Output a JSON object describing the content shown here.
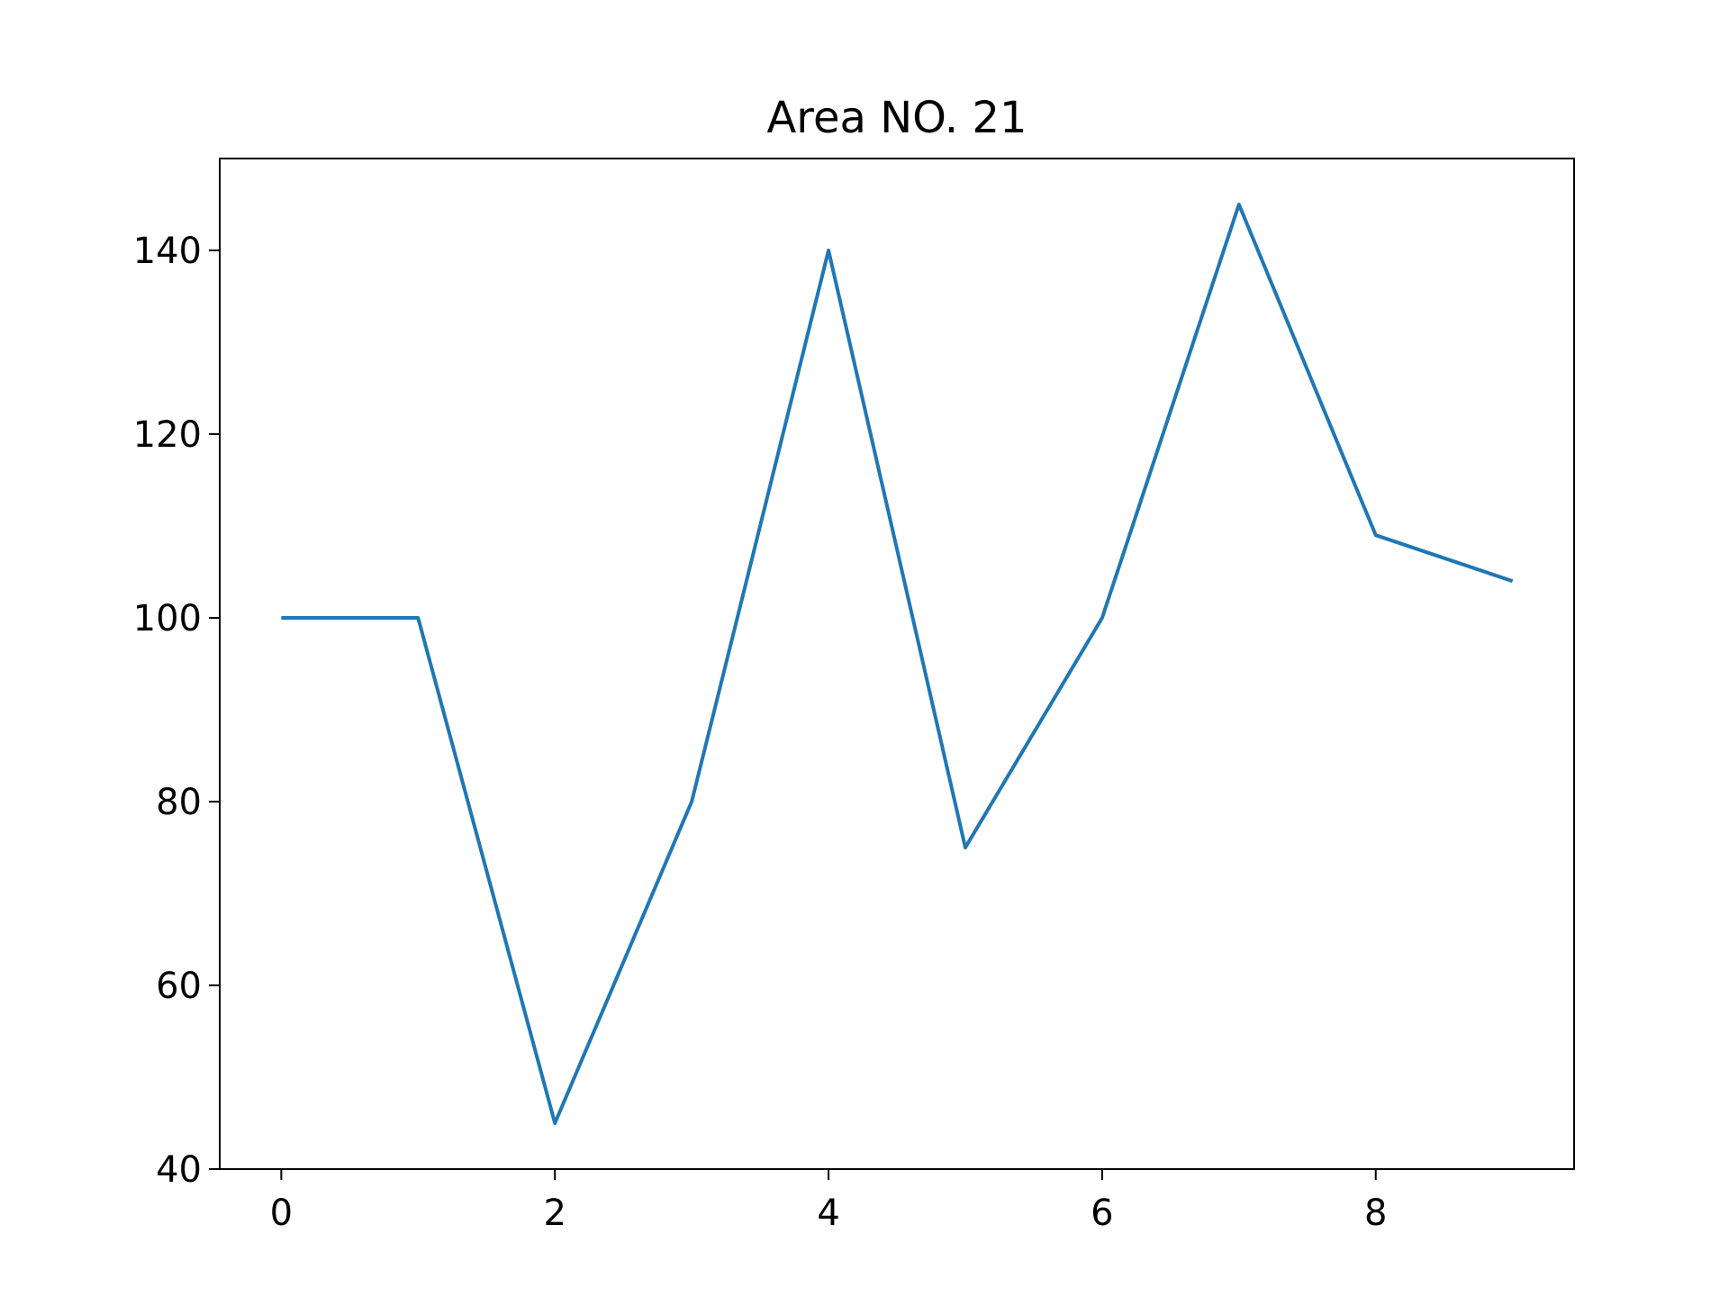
{
  "chart_data": {
    "type": "line",
    "title": "Area NO. 21",
    "xlabel": "",
    "ylabel": "",
    "x": [
      0,
      1,
      2,
      3,
      4,
      5,
      6,
      7,
      8,
      9
    ],
    "series": [
      {
        "values": [
          100,
          100,
          45,
          80,
          140,
          75,
          100,
          145,
          109,
          104
        ],
        "color": "#1f77b4"
      }
    ],
    "xlim": [
      -0.45,
      9.45
    ],
    "ylim": [
      40,
      150
    ],
    "xticks": [
      0,
      2,
      4,
      6,
      8
    ],
    "yticks": [
      40,
      60,
      80,
      100,
      120,
      140
    ],
    "grid": false,
    "legend": "none"
  }
}
